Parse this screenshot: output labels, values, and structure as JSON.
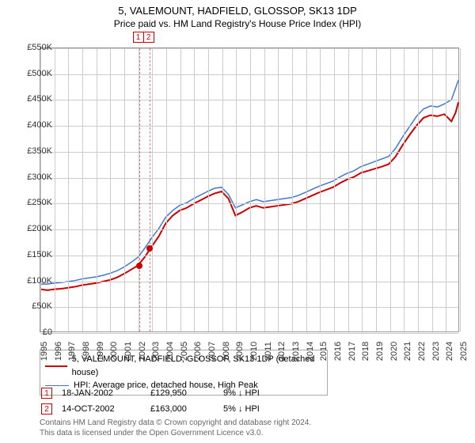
{
  "title": "5, VALEMOUNT, HADFIELD, GLOSSOP, SK13 1DP",
  "subtitle": "Price paid vs. HM Land Registry's House Price Index (HPI)",
  "y_axis": {
    "min": 0,
    "max": 550000,
    "step": 50000,
    "ticks": [
      "£0",
      "£50K",
      "£100K",
      "£150K",
      "£200K",
      "£250K",
      "£300K",
      "£350K",
      "£400K",
      "£450K",
      "£500K",
      "£550K"
    ]
  },
  "x_axis": {
    "min": 1995,
    "max": 2025,
    "labels": [
      "1995",
      "1996",
      "1997",
      "1998",
      "1999",
      "2000",
      "2001",
      "2002",
      "2003",
      "2004",
      "2005",
      "2006",
      "2007",
      "2008",
      "2009",
      "2010",
      "2011",
      "2012",
      "2013",
      "2014",
      "2015",
      "2016",
      "2017",
      "2018",
      "2019",
      "2020",
      "2021",
      "2022",
      "2023",
      "2024",
      "2025"
    ]
  },
  "series": [
    {
      "name": "5, VALEMOUNT, HADFIELD, GLOSSOP, SK13 1DP (detached house)",
      "color": "#cc0000",
      "width": 2,
      "data": [
        [
          1995,
          82000
        ],
        [
          1995.5,
          80000
        ],
        [
          1996,
          82000
        ],
        [
          1996.5,
          83000
        ],
        [
          1997,
          85000
        ],
        [
          1997.5,
          87000
        ],
        [
          1998,
          90000
        ],
        [
          1998.5,
          92000
        ],
        [
          1999,
          94000
        ],
        [
          1999.5,
          97000
        ],
        [
          2000,
          100000
        ],
        [
          2000.5,
          105000
        ],
        [
          2001,
          112000
        ],
        [
          2001.5,
          120000
        ],
        [
          2002,
          128000
        ],
        [
          2002.5,
          145000
        ],
        [
          2003,
          165000
        ],
        [
          2003.5,
          185000
        ],
        [
          2004,
          210000
        ],
        [
          2004.5,
          225000
        ],
        [
          2005,
          235000
        ],
        [
          2005.5,
          240000
        ],
        [
          2006,
          248000
        ],
        [
          2006.5,
          255000
        ],
        [
          2007,
          262000
        ],
        [
          2007.5,
          268000
        ],
        [
          2008,
          272000
        ],
        [
          2008.5,
          258000
        ],
        [
          2009,
          225000
        ],
        [
          2009.5,
          232000
        ],
        [
          2010,
          240000
        ],
        [
          2010.5,
          244000
        ],
        [
          2011,
          240000
        ],
        [
          2011.5,
          242000
        ],
        [
          2012,
          244000
        ],
        [
          2012.5,
          246000
        ],
        [
          2013,
          248000
        ],
        [
          2013.5,
          252000
        ],
        [
          2014,
          258000
        ],
        [
          2014.5,
          264000
        ],
        [
          2015,
          270000
        ],
        [
          2015.5,
          275000
        ],
        [
          2016,
          280000
        ],
        [
          2016.5,
          288000
        ],
        [
          2017,
          295000
        ],
        [
          2017.5,
          300000
        ],
        [
          2018,
          308000
        ],
        [
          2018.5,
          312000
        ],
        [
          2019,
          316000
        ],
        [
          2019.5,
          320000
        ],
        [
          2020,
          325000
        ],
        [
          2020.5,
          340000
        ],
        [
          2021,
          362000
        ],
        [
          2021.5,
          382000
        ],
        [
          2022,
          400000
        ],
        [
          2022.5,
          415000
        ],
        [
          2023,
          420000
        ],
        [
          2023.5,
          418000
        ],
        [
          2024,
          422000
        ],
        [
          2024.5,
          408000
        ],
        [
          2024.8,
          425000
        ],
        [
          2025,
          445000
        ]
      ]
    },
    {
      "name": "HPI: Average price, detached house, High Peak",
      "color": "#4477cc",
      "width": 1.5,
      "data": [
        [
          1995,
          92000
        ],
        [
          1995.5,
          92000
        ],
        [
          1996,
          94000
        ],
        [
          1996.5,
          95000
        ],
        [
          1997,
          97000
        ],
        [
          1997.5,
          99000
        ],
        [
          1998,
          102000
        ],
        [
          1998.5,
          104000
        ],
        [
          1999,
          106000
        ],
        [
          1999.5,
          109000
        ],
        [
          2000,
          113000
        ],
        [
          2000.5,
          118000
        ],
        [
          2001,
          125000
        ],
        [
          2001.5,
          134000
        ],
        [
          2002,
          144000
        ],
        [
          2002.5,
          162000
        ],
        [
          2003,
          182000
        ],
        [
          2003.5,
          200000
        ],
        [
          2004,
          222000
        ],
        [
          2004.5,
          235000
        ],
        [
          2005,
          245000
        ],
        [
          2005.5,
          250000
        ],
        [
          2006,
          258000
        ],
        [
          2006.5,
          265000
        ],
        [
          2007,
          272000
        ],
        [
          2007.5,
          278000
        ],
        [
          2008,
          280000
        ],
        [
          2008.5,
          266000
        ],
        [
          2009,
          240000
        ],
        [
          2009.5,
          246000
        ],
        [
          2010,
          252000
        ],
        [
          2010.5,
          256000
        ],
        [
          2011,
          252000
        ],
        [
          2011.5,
          254000
        ],
        [
          2012,
          256000
        ],
        [
          2012.5,
          258000
        ],
        [
          2013,
          260000
        ],
        [
          2013.5,
          264000
        ],
        [
          2014,
          270000
        ],
        [
          2014.5,
          276000
        ],
        [
          2015,
          282000
        ],
        [
          2015.5,
          287000
        ],
        [
          2016,
          292000
        ],
        [
          2016.5,
          300000
        ],
        [
          2017,
          307000
        ],
        [
          2017.5,
          312000
        ],
        [
          2018,
          320000
        ],
        [
          2018.5,
          325000
        ],
        [
          2019,
          330000
        ],
        [
          2019.5,
          335000
        ],
        [
          2020,
          340000
        ],
        [
          2020.5,
          356000
        ],
        [
          2021,
          378000
        ],
        [
          2021.5,
          398000
        ],
        [
          2022,
          418000
        ],
        [
          2022.5,
          432000
        ],
        [
          2023,
          438000
        ],
        [
          2023.5,
          436000
        ],
        [
          2024,
          442000
        ],
        [
          2024.5,
          450000
        ],
        [
          2025,
          488000
        ]
      ]
    }
  ],
  "events": [
    {
      "n": "1",
      "date": "18-JAN-2002",
      "price": "£129,950",
      "change": "9% ↓ HPI",
      "year": 2002.05,
      "value": 129950
    },
    {
      "n": "2",
      "date": "14-OCT-2002",
      "price": "£163,000",
      "change": "5% ↓ HPI",
      "year": 2002.79,
      "value": 163000
    }
  ],
  "chart_style": {
    "background": "#ffffff",
    "grid_color": "#cccccc",
    "border_color": "#999999",
    "font_size_axis": 11,
    "font_size_title": 13
  },
  "footer1": "Contains HM Land Registry data © Crown copyright and database right 2024.",
  "footer2": "This data is licensed under the Open Government Licence v3.0."
}
